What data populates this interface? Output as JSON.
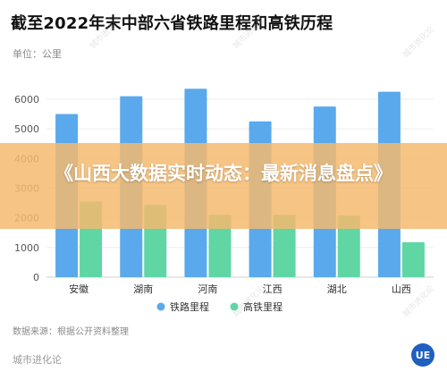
{
  "header": {
    "title": "截至2022年末中部六省铁路里程和高铁历程",
    "unit": "单位：公里"
  },
  "chart_data": {
    "type": "bar",
    "categories": [
      "安徽",
      "湖南",
      "河南",
      "江西",
      "湖北",
      "山西"
    ],
    "series": [
      {
        "name": "铁路里程",
        "color": "#5aa9ec",
        "values": [
          5500,
          6100,
          6350,
          5250,
          5750,
          6250
        ]
      },
      {
        "name": "高铁里程",
        "color": "#5fd6a4",
        "values": [
          2550,
          2430,
          2100,
          2100,
          2080,
          1180
        ]
      }
    ],
    "yticks": [
      0,
      1000,
      2000,
      3000,
      4000,
      5000,
      6000
    ],
    "ylim": [
      0,
      7000
    ],
    "grid": true,
    "legend_position": "bottom-center"
  },
  "footer": {
    "source": "数据来源：根据公开资料整理",
    "brand": "城市进化论",
    "logo_text": "UE"
  },
  "overlay": {
    "headline": "《山西大数据实时动态：最新消息盘点》",
    "banner_color": "#f5ba6e"
  },
  "watermarks": [
    "城市进化论",
    "城市进化论",
    "城市进化论",
    "城市进化论",
    "城市进化论"
  ]
}
